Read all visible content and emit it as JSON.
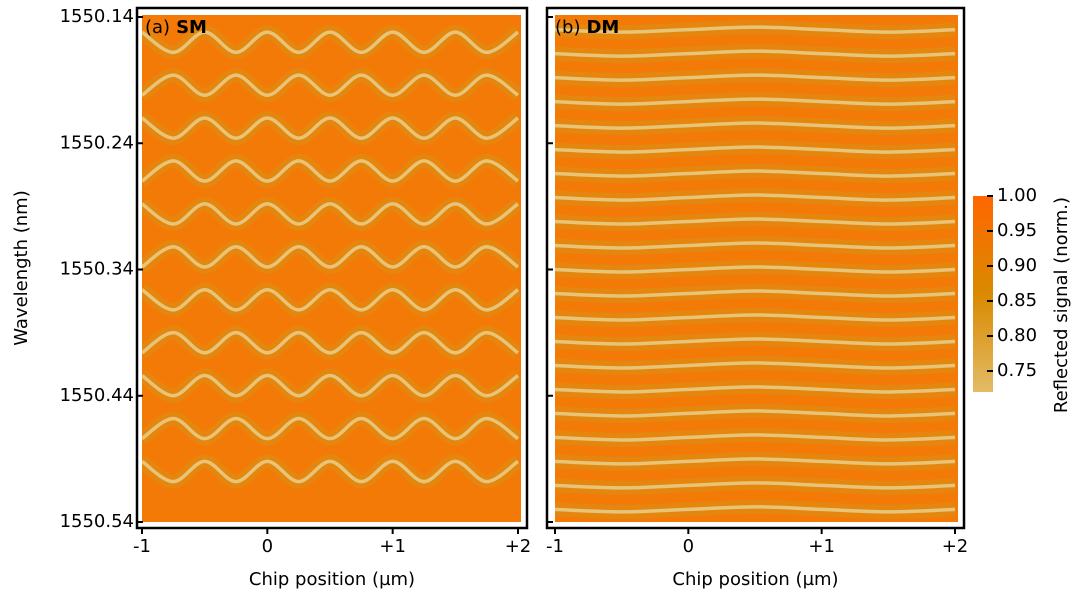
{
  "chart_data": [
    {
      "type": "heatmap",
      "label": "(a)",
      "name": "SM",
      "xlabel": "Chip position (µm)",
      "ylabel": "Wavelength (nm)",
      "xlim": [
        -1,
        2
      ],
      "xticks": [
        -1,
        0,
        {
          "value": 1,
          "label": "+1"
        },
        {
          "value": 2,
          "label": "+2"
        }
      ],
      "ylim": [
        1550.14,
        1550.54
      ],
      "y_reversed": true,
      "yticks": [
        1550.14,
        1550.24,
        1550.34,
        1550.44,
        1550.54
      ],
      "background": "#f47a08",
      "halo_color": "#d99015",
      "line_color": "#e8c478",
      "x": [
        -1,
        -0.75,
        -0.5,
        -0.25,
        0,
        0.25,
        0.5,
        0.75,
        1,
        1.25,
        1.5,
        1.75,
        2
      ],
      "series": [
        {
          "values": [
            1550.152,
            1550.168,
            1550.152,
            1550.168,
            1550.152,
            1550.168,
            1550.152,
            1550.168,
            1550.152,
            1550.168,
            1550.152,
            1550.168,
            1550.152
          ]
        },
        {
          "values": [
            1550.202,
            1550.186,
            1550.202,
            1550.186,
            1550.202,
            1550.186,
            1550.202,
            1550.186,
            1550.202,
            1550.186,
            1550.202,
            1550.186,
            1550.202
          ]
        },
        {
          "values": [
            1550.22,
            1550.236,
            1550.22,
            1550.236,
            1550.22,
            1550.236,
            1550.22,
            1550.236,
            1550.22,
            1550.236,
            1550.22,
            1550.236,
            1550.22
          ]
        },
        {
          "values": [
            1550.27,
            1550.254,
            1550.27,
            1550.254,
            1550.27,
            1550.254,
            1550.27,
            1550.254,
            1550.27,
            1550.254,
            1550.27,
            1550.254,
            1550.27
          ]
        },
        {
          "values": [
            1550.288,
            1550.304,
            1550.288,
            1550.304,
            1550.288,
            1550.304,
            1550.288,
            1550.304,
            1550.288,
            1550.304,
            1550.288,
            1550.304,
            1550.288
          ]
        },
        {
          "values": [
            1550.338,
            1550.322,
            1550.338,
            1550.322,
            1550.338,
            1550.322,
            1550.338,
            1550.322,
            1550.338,
            1550.322,
            1550.338,
            1550.322,
            1550.338
          ]
        },
        {
          "values": [
            1550.356,
            1550.372,
            1550.356,
            1550.372,
            1550.356,
            1550.372,
            1550.356,
            1550.372,
            1550.356,
            1550.372,
            1550.356,
            1550.372,
            1550.356
          ]
        },
        {
          "values": [
            1550.406,
            1550.39,
            1550.406,
            1550.39,
            1550.406,
            1550.39,
            1550.406,
            1550.39,
            1550.406,
            1550.39,
            1550.406,
            1550.39,
            1550.406
          ]
        },
        {
          "values": [
            1550.424,
            1550.44,
            1550.424,
            1550.44,
            1550.424,
            1550.44,
            1550.424,
            1550.44,
            1550.424,
            1550.44,
            1550.424,
            1550.44,
            1550.424
          ]
        },
        {
          "values": [
            1550.474,
            1550.458,
            1550.474,
            1550.458,
            1550.474,
            1550.458,
            1550.474,
            1550.458,
            1550.474,
            1550.458,
            1550.474,
            1550.458,
            1550.474
          ]
        },
        {
          "values": [
            1550.492,
            1550.508,
            1550.492,
            1550.508,
            1550.492,
            1550.508,
            1550.492,
            1550.508,
            1550.492,
            1550.508,
            1550.492,
            1550.508,
            1550.492
          ]
        }
      ]
    },
    {
      "type": "heatmap",
      "label": "(b)",
      "name": "DM",
      "xlabel": "Chip position (µm)",
      "xlim": [
        -1,
        2
      ],
      "xticks": [
        -1,
        0,
        {
          "value": 1,
          "label": "+1"
        },
        {
          "value": 2,
          "label": "+2"
        }
      ],
      "ylim": [
        1550.14,
        1550.54
      ],
      "y_reversed": true,
      "yticks": [
        1550.14,
        1550.24,
        1550.34,
        1550.44,
        1550.54
      ],
      "background": "#f47a08",
      "halo_color": "#d99015",
      "line_color": "#e8c478",
      "x": [
        -1,
        -0.5,
        0,
        0.5,
        1,
        1.5,
        2
      ],
      "series": [
        {
          "values": [
            1550.15,
            1550.152,
            1550.15,
            1550.148,
            1550.15,
            1550.152,
            1550.15
          ]
        },
        {
          "values": [
            1550.169,
            1550.171,
            1550.169,
            1550.167,
            1550.169,
            1550.171,
            1550.169
          ]
        },
        {
          "values": [
            1550.188,
            1550.19,
            1550.188,
            1550.186,
            1550.188,
            1550.19,
            1550.188
          ]
        },
        {
          "values": [
            1550.207,
            1550.209,
            1550.207,
            1550.205,
            1550.207,
            1550.209,
            1550.207
          ]
        },
        {
          "values": [
            1550.226,
            1550.228,
            1550.226,
            1550.224,
            1550.226,
            1550.228,
            1550.226
          ]
        },
        {
          "values": [
            1550.245,
            1550.247,
            1550.245,
            1550.243,
            1550.245,
            1550.247,
            1550.245
          ]
        },
        {
          "values": [
            1550.264,
            1550.266,
            1550.264,
            1550.262,
            1550.264,
            1550.266,
            1550.264
          ]
        },
        {
          "values": [
            1550.283,
            1550.285,
            1550.283,
            1550.281,
            1550.283,
            1550.285,
            1550.283
          ]
        },
        {
          "values": [
            1550.302,
            1550.304,
            1550.302,
            1550.3,
            1550.302,
            1550.304,
            1550.302
          ]
        },
        {
          "values": [
            1550.321,
            1550.323,
            1550.321,
            1550.319,
            1550.321,
            1550.323,
            1550.321
          ]
        },
        {
          "values": [
            1550.34,
            1550.342,
            1550.34,
            1550.338,
            1550.34,
            1550.342,
            1550.34
          ]
        },
        {
          "values": [
            1550.359,
            1550.361,
            1550.359,
            1550.357,
            1550.359,
            1550.361,
            1550.359
          ]
        },
        {
          "values": [
            1550.378,
            1550.38,
            1550.378,
            1550.376,
            1550.378,
            1550.38,
            1550.378
          ]
        },
        {
          "values": [
            1550.397,
            1550.399,
            1550.397,
            1550.395,
            1550.397,
            1550.399,
            1550.397
          ]
        },
        {
          "values": [
            1550.416,
            1550.418,
            1550.416,
            1550.414,
            1550.416,
            1550.418,
            1550.416
          ]
        },
        {
          "values": [
            1550.435,
            1550.437,
            1550.435,
            1550.433,
            1550.435,
            1550.437,
            1550.435
          ]
        },
        {
          "values": [
            1550.454,
            1550.456,
            1550.454,
            1550.452,
            1550.454,
            1550.456,
            1550.454
          ]
        },
        {
          "values": [
            1550.473,
            1550.475,
            1550.473,
            1550.471,
            1550.473,
            1550.475,
            1550.473
          ]
        },
        {
          "values": [
            1550.492,
            1550.494,
            1550.492,
            1550.49,
            1550.492,
            1550.494,
            1550.492
          ]
        },
        {
          "values": [
            1550.511,
            1550.513,
            1550.511,
            1550.509,
            1550.511,
            1550.513,
            1550.511
          ]
        },
        {
          "values": [
            1550.53,
            1550.532,
            1550.53,
            1550.528,
            1550.53,
            1550.532,
            1550.53
          ]
        }
      ]
    }
  ],
  "colorbar": {
    "label": "Reflected signal (norm.)",
    "ylim": [
      0.72,
      1.0
    ],
    "yticks": [
      0.75,
      {
        "value": 0.8,
        "label": "0.80"
      },
      0.85,
      {
        "value": 0.9,
        "label": "0.90"
      },
      0.95,
      {
        "value": 1.0,
        "label": "1.00"
      }
    ],
    "stops": [
      {
        "value": 1.0,
        "color": "#ff6600"
      },
      {
        "value": 0.86,
        "color": "#d98a00"
      },
      {
        "value": 0.72,
        "color": "#e3bb66"
      }
    ]
  }
}
